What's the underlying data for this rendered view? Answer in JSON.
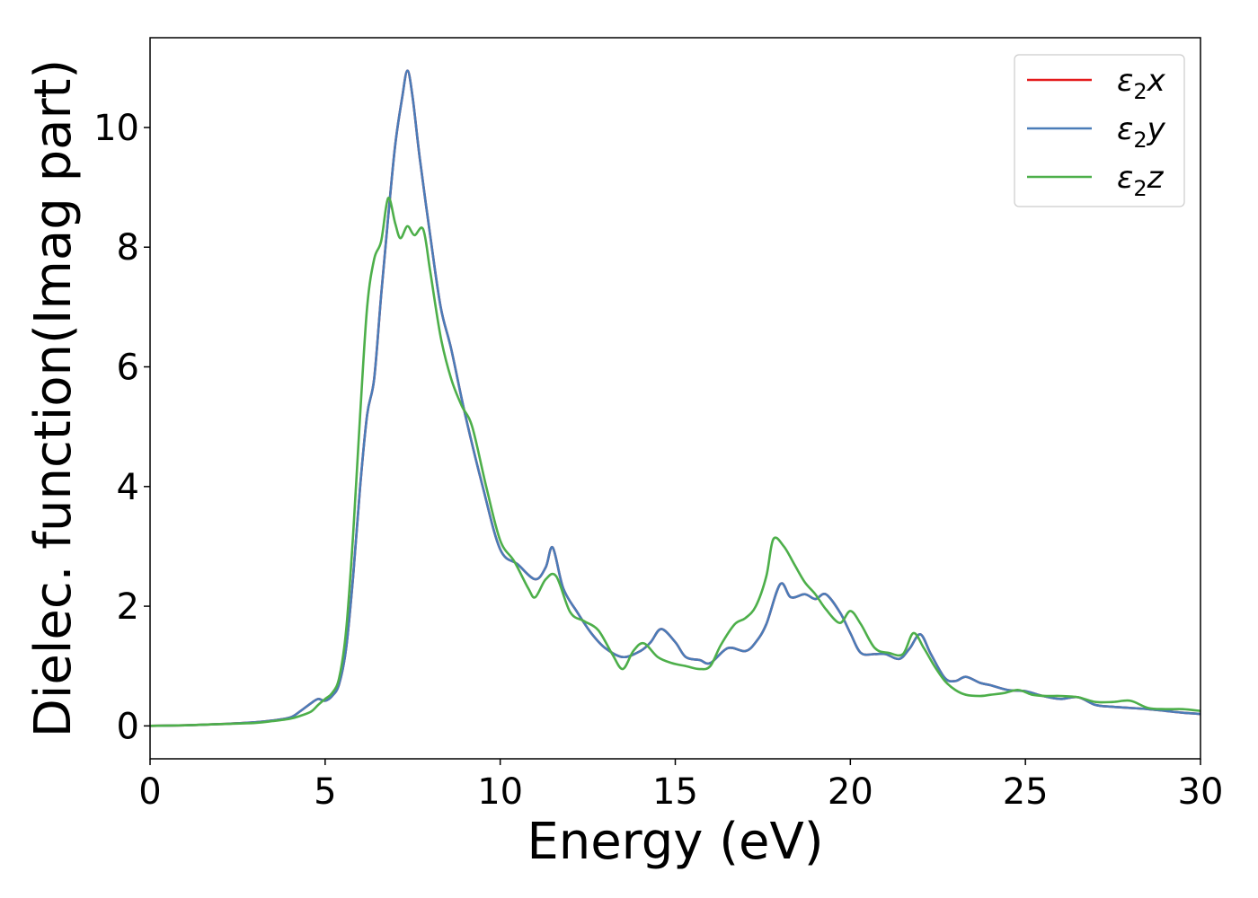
{
  "chart_data": {
    "type": "line",
    "xlabel": "Energy (eV)",
    "ylabel": "Dielec. function(Imag part)",
    "xlim": [
      0,
      30
    ],
    "ylim": [
      -0.55,
      11.5
    ],
    "xticks": [
      0,
      5,
      10,
      15,
      20,
      25,
      30
    ],
    "yticks": [
      0,
      2,
      4,
      6,
      8,
      10
    ],
    "grid": false,
    "legend_position": "top-right",
    "series": [
      {
        "name": "ε2x",
        "legend_sym": "ε",
        "legend_sub": "2",
        "legend_var": "x",
        "color": "#e41a1c",
        "x": [
          0,
          1,
          2,
          3,
          3.5,
          4,
          4.3,
          4.6,
          4.8,
          5.0,
          5.2,
          5.4,
          5.6,
          5.8,
          6.0,
          6.2,
          6.4,
          6.6,
          6.8,
          7.0,
          7.2,
          7.35,
          7.5,
          7.7,
          8.0,
          8.3,
          8.6,
          9.0,
          9.5,
          10.0,
          10.5,
          11.0,
          11.3,
          11.5,
          11.8,
          12.2,
          12.6,
          13.0,
          13.5,
          14.0,
          14.3,
          14.6,
          15.0,
          15.3,
          15.7,
          16.0,
          16.5,
          17.0,
          17.3,
          17.6,
          18.0,
          18.3,
          18.7,
          19.0,
          19.3,
          19.7,
          20.0,
          20.3,
          20.7,
          21.0,
          21.4,
          21.7,
          22.0,
          22.3,
          22.7,
          23.0,
          23.3,
          23.7,
          24.0,
          24.5,
          25.0,
          25.5,
          26.0,
          26.5,
          27.0,
          27.5,
          28.0,
          28.5,
          29.0,
          29.5,
          30.0
        ],
        "values": [
          0,
          0.01,
          0.03,
          0.06,
          0.09,
          0.14,
          0.25,
          0.38,
          0.45,
          0.42,
          0.5,
          0.7,
          1.3,
          2.5,
          4.0,
          5.2,
          5.8,
          7.2,
          8.5,
          9.7,
          10.5,
          10.95,
          10.5,
          9.5,
          8.2,
          7.0,
          6.3,
          5.2,
          4.0,
          2.95,
          2.7,
          2.45,
          2.65,
          2.98,
          2.3,
          1.9,
          1.55,
          1.3,
          1.15,
          1.25,
          1.4,
          1.62,
          1.4,
          1.15,
          1.1,
          1.05,
          1.3,
          1.25,
          1.4,
          1.7,
          2.37,
          2.15,
          2.2,
          2.12,
          2.2,
          1.9,
          1.55,
          1.22,
          1.2,
          1.2,
          1.12,
          1.3,
          1.53,
          1.2,
          0.8,
          0.75,
          0.82,
          0.72,
          0.68,
          0.6,
          0.58,
          0.5,
          0.45,
          0.48,
          0.35,
          0.32,
          0.3,
          0.28,
          0.25,
          0.22,
          0.2
        ]
      },
      {
        "name": "ε2y",
        "legend_sym": "ε",
        "legend_sub": "2",
        "legend_var": "y",
        "color": "#4a7cb8",
        "x": [
          0,
          1,
          2,
          3,
          3.5,
          4,
          4.3,
          4.6,
          4.8,
          5.0,
          5.2,
          5.4,
          5.6,
          5.8,
          6.0,
          6.2,
          6.4,
          6.6,
          6.8,
          7.0,
          7.2,
          7.35,
          7.5,
          7.7,
          8.0,
          8.3,
          8.6,
          9.0,
          9.5,
          10.0,
          10.5,
          11.0,
          11.3,
          11.5,
          11.8,
          12.2,
          12.6,
          13.0,
          13.5,
          14.0,
          14.3,
          14.6,
          15.0,
          15.3,
          15.7,
          16.0,
          16.5,
          17.0,
          17.3,
          17.6,
          18.0,
          18.3,
          18.7,
          19.0,
          19.3,
          19.7,
          20.0,
          20.3,
          20.7,
          21.0,
          21.4,
          21.7,
          22.0,
          22.3,
          22.7,
          23.0,
          23.3,
          23.7,
          24.0,
          24.5,
          25.0,
          25.5,
          26.0,
          26.5,
          27.0,
          27.5,
          28.0,
          28.5,
          29.0,
          29.5,
          30.0
        ],
        "values": [
          0,
          0.01,
          0.03,
          0.06,
          0.09,
          0.14,
          0.25,
          0.38,
          0.45,
          0.42,
          0.5,
          0.7,
          1.3,
          2.5,
          4.0,
          5.2,
          5.8,
          7.2,
          8.5,
          9.7,
          10.5,
          10.95,
          10.5,
          9.5,
          8.2,
          7.0,
          6.3,
          5.2,
          4.0,
          2.95,
          2.7,
          2.45,
          2.65,
          2.98,
          2.3,
          1.9,
          1.55,
          1.3,
          1.15,
          1.25,
          1.4,
          1.62,
          1.4,
          1.15,
          1.1,
          1.05,
          1.3,
          1.25,
          1.4,
          1.7,
          2.37,
          2.15,
          2.2,
          2.12,
          2.2,
          1.9,
          1.55,
          1.22,
          1.2,
          1.2,
          1.12,
          1.3,
          1.53,
          1.2,
          0.8,
          0.75,
          0.82,
          0.72,
          0.68,
          0.6,
          0.58,
          0.5,
          0.45,
          0.48,
          0.35,
          0.32,
          0.3,
          0.28,
          0.25,
          0.22,
          0.2
        ]
      },
      {
        "name": "ε2z",
        "legend_sym": "ε",
        "legend_sub": "2",
        "legend_var": "z",
        "color": "#4daf4a",
        "x": [
          0,
          1,
          2,
          3,
          3.5,
          4,
          4.3,
          4.6,
          4.8,
          5.0,
          5.2,
          5.4,
          5.6,
          5.8,
          6.0,
          6.2,
          6.4,
          6.6,
          6.8,
          7.0,
          7.15,
          7.35,
          7.55,
          7.8,
          8.0,
          8.3,
          8.6,
          8.9,
          9.2,
          9.6,
          10.0,
          10.4,
          10.8,
          11.0,
          11.3,
          11.6,
          12.0,
          12.4,
          12.8,
          13.2,
          13.5,
          13.8,
          14.1,
          14.5,
          14.9,
          15.3,
          15.7,
          16.0,
          16.3,
          16.7,
          17.0,
          17.3,
          17.6,
          17.8,
          18.1,
          18.4,
          18.7,
          19.0,
          19.3,
          19.7,
          20.0,
          20.3,
          20.7,
          21.1,
          21.5,
          21.8,
          22.1,
          22.4,
          22.7,
          23.0,
          23.3,
          23.7,
          24.0,
          24.4,
          24.8,
          25.2,
          25.6,
          26.0,
          26.5,
          27.0,
          27.5,
          28.0,
          28.5,
          29.0,
          29.5,
          30.0
        ],
        "values": [
          0,
          0.01,
          0.03,
          0.05,
          0.08,
          0.12,
          0.17,
          0.24,
          0.35,
          0.45,
          0.55,
          0.8,
          1.6,
          3.2,
          5.2,
          7.0,
          7.8,
          8.1,
          8.82,
          8.4,
          8.15,
          8.35,
          8.2,
          8.3,
          7.6,
          6.5,
          5.8,
          5.35,
          5.0,
          4.0,
          3.1,
          2.75,
          2.3,
          2.15,
          2.45,
          2.5,
          1.9,
          1.75,
          1.6,
          1.2,
          0.95,
          1.25,
          1.38,
          1.15,
          1.05,
          1.0,
          0.95,
          1.0,
          1.35,
          1.7,
          1.8,
          2.0,
          2.5,
          3.12,
          3.0,
          2.7,
          2.4,
          2.2,
          1.95,
          1.72,
          1.92,
          1.7,
          1.3,
          1.22,
          1.2,
          1.55,
          1.3,
          1.0,
          0.75,
          0.6,
          0.52,
          0.5,
          0.52,
          0.55,
          0.6,
          0.52,
          0.5,
          0.5,
          0.48,
          0.4,
          0.4,
          0.42,
          0.3,
          0.28,
          0.28,
          0.25
        ]
      }
    ]
  }
}
